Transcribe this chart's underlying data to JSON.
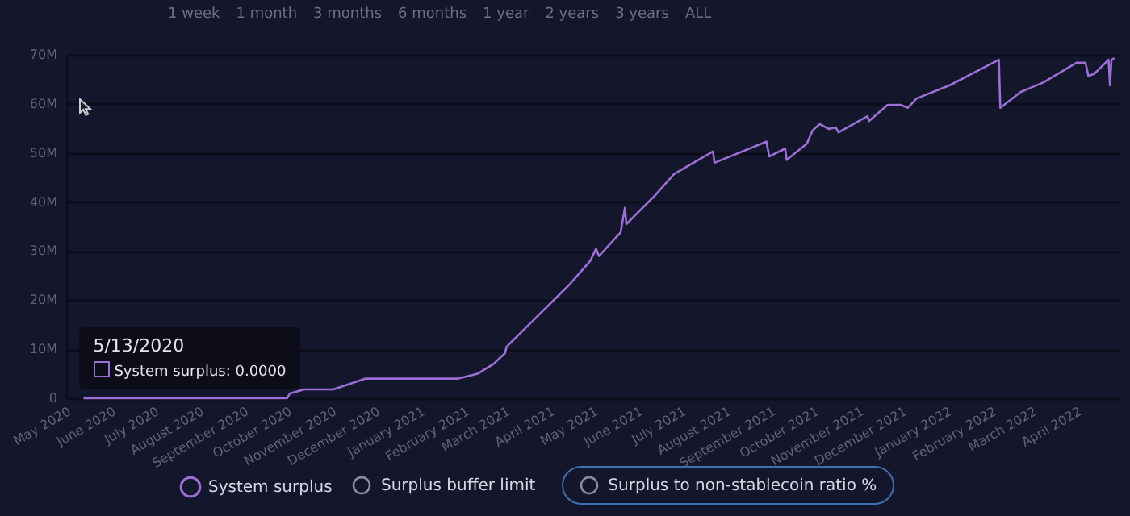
{
  "chart_data": {
    "type": "line",
    "annotations": [
      "1 week",
      "1 month",
      "3 months",
      "6 months",
      "1 year",
      "2 years",
      "3 years",
      "ALL",
      {
        "text": "5/13/2020",
        "x": "2020-05-13",
        "y": 0
      },
      {
        "text": "System surplus: 0.0000",
        "x": "2020-05-13",
        "y": 0
      },
      "Surplus buffer limit",
      "Surplus to non-stablecoin ratio %"
    ],
    "x": [
      "2020-05-13",
      "2020-10-01",
      "2020-10-03",
      "2020-10-13",
      "2020-11-02",
      "2020-11-24",
      "2021-01-27",
      "2021-02-10",
      "2021-02-21",
      "2021-03-01",
      "2021-03-02",
      "2021-04-14",
      "2021-04-29",
      "2021-05-03",
      "2021-05-05",
      "2021-05-20",
      "2021-05-23",
      "2021-05-24",
      "2021-06-13",
      "2021-06-26",
      "2021-07-23",
      "2021-07-24",
      "2021-08-29",
      "2021-08-31",
      "2021-09-11",
      "2021-09-12",
      "2021-09-26",
      "2021-09-30",
      "2021-10-05",
      "2021-10-11",
      "2021-10-16",
      "2021-10-18",
      "2021-11-07",
      "2021-11-08",
      "2021-11-21",
      "2021-11-30",
      "2021-12-05",
      "2021-12-11",
      "2022-01-03",
      "2022-02-06",
      "2022-02-07",
      "2022-02-21",
      "2022-03-09",
      "2022-04-01",
      "2022-04-07",
      "2022-04-09",
      "2022-04-13",
      "2022-04-23",
      "2022-04-24",
      "2022-04-25",
      "2022-04-27"
    ],
    "series": [
      {
        "name": "System surplus",
        "color": "#9b6fd6",
        "values": [
          0,
          0,
          1000000,
          1800000,
          1800000,
          4000000,
          4000000,
          5000000,
          7000000,
          9200000,
          10500000,
          23000000,
          28000000,
          30500000,
          29000000,
          33800000,
          38800000,
          35500000,
          41400000,
          45700000,
          50300000,
          48000000,
          52300000,
          49300000,
          50900000,
          48600000,
          51900000,
          54600000,
          55900000,
          54900000,
          55200000,
          54200000,
          57500000,
          56500000,
          59800000,
          59800000,
          59200000,
          61100000,
          63800000,
          69000000,
          59200000,
          62400000,
          64400000,
          68400000,
          68400000,
          65700000,
          66100000,
          69000000,
          63800000,
          69000000,
          69300000
        ]
      }
    ],
    "xlim": [
      "2020-05-01",
      "2022-04-30"
    ],
    "xticks": [
      {
        "value": "2020-05",
        "label": "May 2020"
      },
      {
        "value": "2020-06",
        "label": "June 2020"
      },
      {
        "value": "2020-07",
        "label": "July 2020"
      },
      {
        "value": "2020-08",
        "label": "August 2020"
      },
      {
        "value": "2020-09",
        "label": "September 2020"
      },
      {
        "value": "2020-10",
        "label": "October 2020"
      },
      {
        "value": "2020-11",
        "label": "November 2020"
      },
      {
        "value": "2020-12",
        "label": "December 2020"
      },
      {
        "value": "2021-01",
        "label": "January 2021"
      },
      {
        "value": "2021-02",
        "label": "February 2021"
      },
      {
        "value": "2021-03",
        "label": "March 2021"
      },
      {
        "value": "2021-04",
        "label": "April 2021"
      },
      {
        "value": "2021-05",
        "label": "May 2021"
      },
      {
        "value": "2021-06",
        "label": "June 2021"
      },
      {
        "value": "2021-07",
        "label": "July 2021"
      },
      {
        "value": "2021-08",
        "label": "August 2021"
      },
      {
        "value": "2021-09",
        "label": "September 2021"
      },
      {
        "value": "2021-10",
        "label": "October 2021"
      },
      {
        "value": "2021-11",
        "label": "November 2021"
      },
      {
        "value": "2021-12",
        "label": "December 2021"
      },
      {
        "value": "2022-01",
        "label": "January 2022"
      },
      {
        "value": "2022-02",
        "label": "February 2022"
      },
      {
        "value": "2022-03",
        "label": "March 2022"
      },
      {
        "value": "2022-04",
        "label": "April 2022"
      }
    ],
    "ylim": [
      0,
      70000000
    ],
    "yticks": [
      0,
      {
        "value": 10000000,
        "label": "10M"
      },
      {
        "value": 20000000,
        "label": "20M"
      },
      {
        "value": 30000000,
        "label": "30M"
      },
      {
        "value": 40000000,
        "label": "40M"
      },
      {
        "value": 50000000,
        "label": "50M"
      },
      {
        "value": 60000000,
        "label": "60M"
      },
      {
        "value": 70000000,
        "label": "70M"
      }
    ],
    "grid": "y",
    "legend": "bottom",
    "marker": "none",
    "line_style": "solid"
  }
}
